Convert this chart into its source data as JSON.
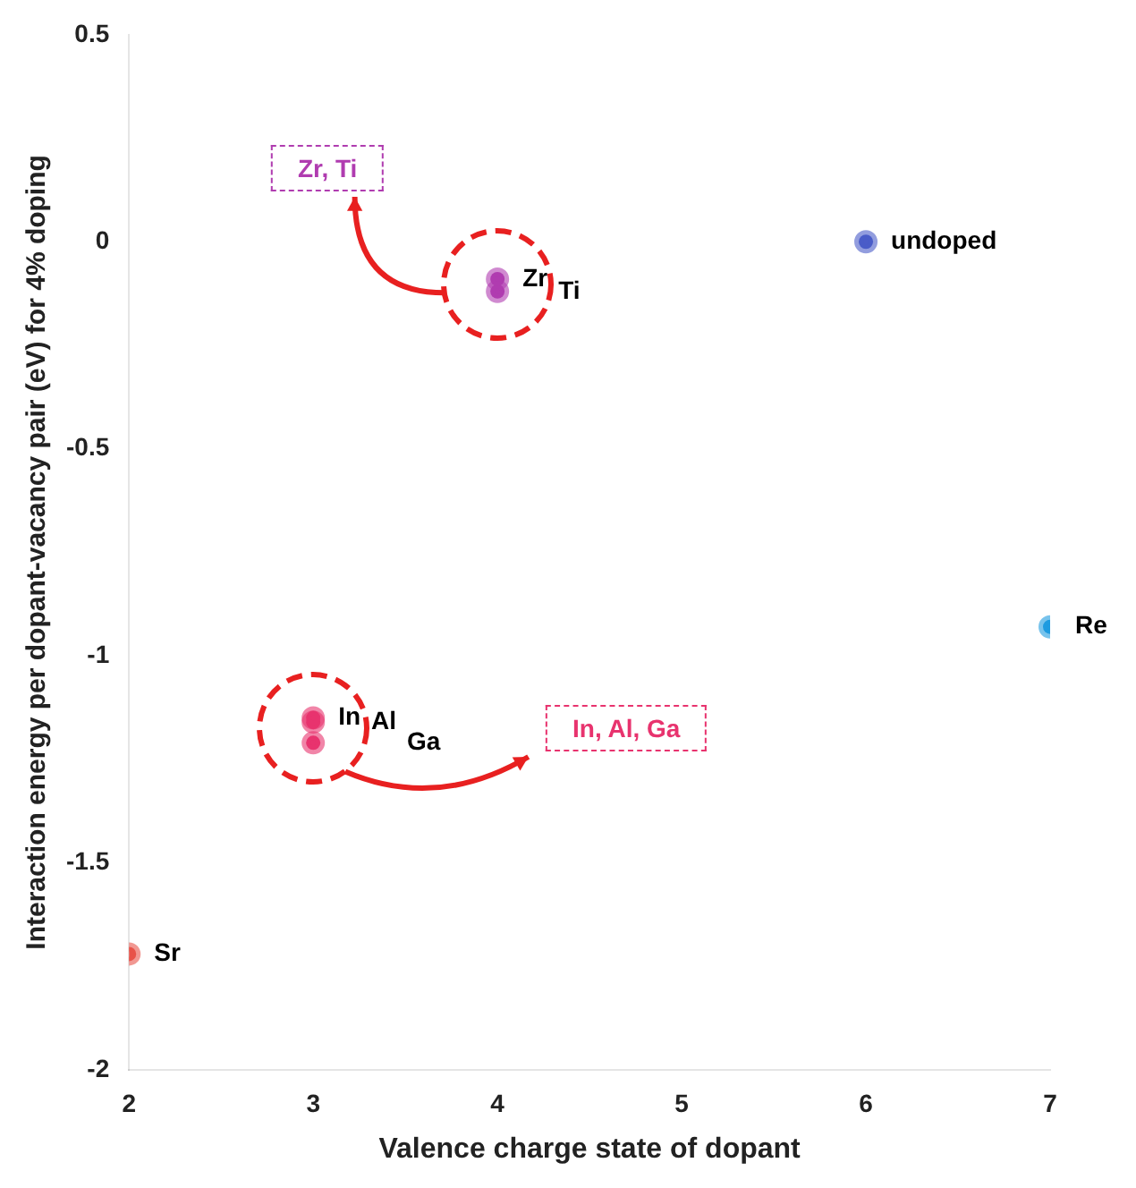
{
  "chart_data": {
    "type": "scatter",
    "xlabel": "Valence charge state of dopant",
    "ylabel": "Interaction energy per dopant-vacancy pair (eV) for 4% doping",
    "xlim": [
      2,
      7
    ],
    "xticks": [
      2,
      3,
      4,
      5,
      6,
      7
    ],
    "ylim": [
      -2,
      0.5
    ],
    "yticks": [
      -2,
      -1.5,
      -1,
      -0.5,
      0,
      0.5
    ],
    "grid": false,
    "legend": false,
    "marker": "circle",
    "series": [
      {
        "name": "Sr",
        "color": "#e8534a",
        "x": [
          2
        ],
        "values": [
          -1.72
        ]
      },
      {
        "name": "In",
        "color": "#e8336e",
        "x": [
          3
        ],
        "values": [
          -1.15
        ]
      },
      {
        "name": "Al",
        "color": "#e8336e",
        "x": [
          3
        ],
        "values": [
          -1.16
        ]
      },
      {
        "name": "Ga",
        "color": "#e8336e",
        "x": [
          3
        ],
        "values": [
          -1.21
        ]
      },
      {
        "name": "Zr",
        "color": "#b03cb0",
        "x": [
          4
        ],
        "values": [
          -0.09
        ]
      },
      {
        "name": "Ti",
        "color": "#b03cb0",
        "x": [
          4
        ],
        "values": [
          -0.12
        ]
      },
      {
        "name": "undoped",
        "color": "#4a5cc8",
        "x": [
          6
        ],
        "values": [
          0
        ]
      },
      {
        "name": "Re",
        "color": "#1e9be0",
        "x": [
          7
        ],
        "values": [
          -0.93
        ]
      }
    ],
    "annotations": [
      "Zr, Ti",
      "In, Al, Ga"
    ]
  }
}
